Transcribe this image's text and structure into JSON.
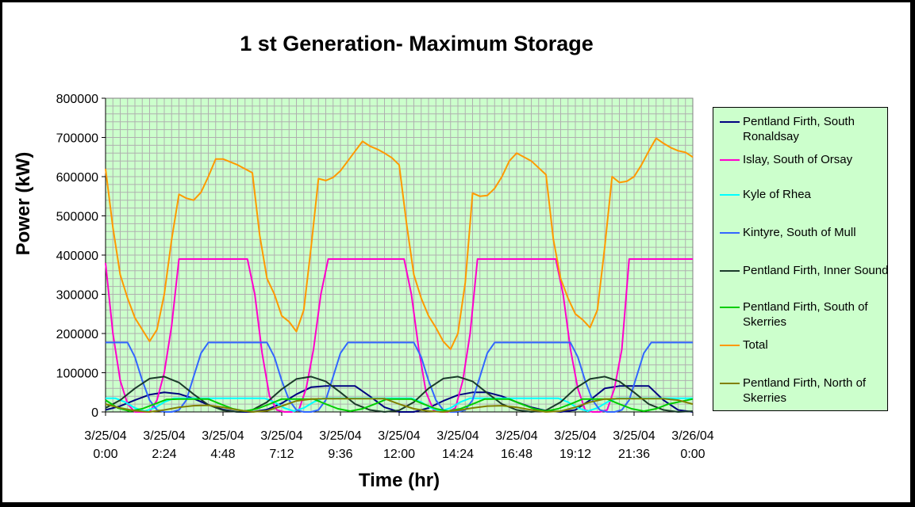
{
  "chart_data": {
    "type": "line",
    "title": "1 st Generation- Maximum Storage",
    "xlabel": "Time (hr)",
    "ylabel": "Power (kW)",
    "ylim": [
      0,
      800000
    ],
    "yticks": [
      "0",
      "100000",
      "200000",
      "300000",
      "400000",
      "500000",
      "600000",
      "700000",
      "800000"
    ],
    "xlim": [
      0,
      24
    ],
    "xticks": [
      {
        "line1": "3/25/04",
        "line2": "0:00"
      },
      {
        "line1": "3/25/04",
        "line2": "2:24"
      },
      {
        "line1": "3/25/04",
        "line2": "4:48"
      },
      {
        "line1": "3/25/04",
        "line2": "7:12"
      },
      {
        "line1": "3/25/04",
        "line2": "9:36"
      },
      {
        "line1": "3/25/04",
        "line2": "12:00"
      },
      {
        "line1": "3/25/04",
        "line2": "14:24"
      },
      {
        "line1": "3/25/04",
        "line2": "16:48"
      },
      {
        "line1": "3/25/04",
        "line2": "19:12"
      },
      {
        "line1": "3/25/04",
        "line2": "21:36"
      },
      {
        "line1": "3/26/04",
        "line2": "0:00"
      }
    ],
    "grid": true,
    "plot_background": "#ccffcc",
    "grid_color": "#b0b0b0",
    "legend_position": "right",
    "series": [
      {
        "name": "Pentland Firth, South Ronaldsay",
        "color": "#000080",
        "x": [
          0,
          0.6,
          1.2,
          1.8,
          2.4,
          3.0,
          3.6,
          4.2,
          4.8,
          5.4,
          6.0,
          6.6,
          7.2,
          7.8,
          8.4,
          9.0,
          9.6,
          10.2,
          10.8,
          11.4,
          12.0,
          12.6,
          13.2,
          13.8,
          14.4,
          15.0,
          15.6,
          16.2,
          16.8,
          17.4,
          18.0,
          18.6,
          19.2,
          19.8,
          20.4,
          21.0,
          21.6,
          22.2,
          22.8,
          23.4,
          24.0
        ],
        "values": [
          5000,
          15000,
          30000,
          44000,
          50000,
          46000,
          34000,
          18000,
          6000,
          0,
          0,
          6000,
          22000,
          45000,
          63000,
          66000,
          66000,
          66000,
          40000,
          12000,
          0,
          0,
          10000,
          28000,
          43000,
          50000,
          50000,
          40000,
          25000,
          12000,
          3000,
          0,
          5000,
          30000,
          60000,
          66000,
          66000,
          66000,
          30000,
          5000,
          0
        ]
      },
      {
        "name": "Islay, South of Orsay",
        "color": "#ff00cc",
        "x": [
          0,
          0.3,
          0.6,
          0.9,
          1.2,
          1.5,
          1.8,
          2.1,
          2.4,
          2.7,
          3.0,
          5.8,
          6.1,
          6.4,
          6.7,
          7.0,
          7.3,
          7.6,
          7.9,
          8.2,
          8.5,
          8.8,
          9.1,
          12.2,
          12.5,
          12.8,
          13.1,
          13.4,
          13.7,
          14.0,
          14.3,
          14.6,
          14.9,
          15.2,
          18.4,
          18.7,
          19.0,
          19.3,
          19.6,
          19.9,
          20.2,
          20.5,
          20.8,
          21.1,
          21.4,
          24.0
        ],
        "values": [
          380000,
          200000,
          80000,
          20000,
          0,
          0,
          0,
          30000,
          100000,
          220000,
          390000,
          390000,
          300000,
          150000,
          40000,
          5000,
          0,
          0,
          5000,
          60000,
          160000,
          300000,
          390000,
          390000,
          300000,
          160000,
          50000,
          5000,
          0,
          0,
          10000,
          80000,
          200000,
          390000,
          390000,
          300000,
          160000,
          60000,
          5000,
          0,
          0,
          5000,
          60000,
          160000,
          390000,
          390000
        ]
      },
      {
        "name": "Kyle of Rhea",
        "color": "#00ffff",
        "x": [
          0,
          0.4,
          0.8,
          1.2,
          1.6,
          2.0,
          2.4,
          2.8,
          3.2,
          6.5,
          6.9,
          7.3,
          7.7,
          8.1,
          8.5,
          8.9,
          9.3,
          12.5,
          12.9,
          13.3,
          13.7,
          14.1,
          14.5,
          14.9,
          15.3,
          18.5,
          18.9,
          19.3,
          19.7,
          20.1,
          20.5,
          20.9,
          21.3,
          24.0
        ],
        "values": [
          35000,
          35000,
          25000,
          10000,
          2000,
          10000,
          25000,
          35000,
          35000,
          35000,
          25000,
          10000,
          2000,
          10000,
          25000,
          35000,
          35000,
          35000,
          25000,
          10000,
          2000,
          10000,
          25000,
          35000,
          35000,
          35000,
          25000,
          10000,
          2000,
          10000,
          25000,
          35000,
          35000,
          35000
        ]
      },
      {
        "name": "Kintyre, South of Mull",
        "color": "#3366ff",
        "x": [
          0,
          0.9,
          1.2,
          1.5,
          1.8,
          2.1,
          2.4,
          2.7,
          3.0,
          3.3,
          3.6,
          3.9,
          4.2,
          4.5,
          6.6,
          6.9,
          7.2,
          7.5,
          7.8,
          8.1,
          8.4,
          8.7,
          9.0,
          9.3,
          9.6,
          9.9,
          10.2,
          10.5,
          12.6,
          12.9,
          13.2,
          13.5,
          13.8,
          14.1,
          14.4,
          14.7,
          15.0,
          15.3,
          15.6,
          15.9,
          16.2,
          16.5,
          19.0,
          19.3,
          19.6,
          19.9,
          20.2,
          20.5,
          20.8,
          21.1,
          21.4,
          21.7,
          22.0,
          22.3,
          22.6,
          24.0
        ],
        "values": [
          177000,
          177000,
          140000,
          80000,
          30000,
          5000,
          0,
          0,
          5000,
          30000,
          90000,
          150000,
          177000,
          177000,
          177000,
          140000,
          80000,
          30000,
          5000,
          0,
          0,
          5000,
          30000,
          90000,
          150000,
          177000,
          177000,
          177000,
          177000,
          140000,
          80000,
          30000,
          5000,
          0,
          0,
          5000,
          30000,
          90000,
          150000,
          177000,
          177000,
          177000,
          177000,
          140000,
          80000,
          30000,
          5000,
          0,
          0,
          5000,
          30000,
          90000,
          150000,
          177000,
          177000,
          177000
        ]
      },
      {
        "name": "Pentland Firth, Inner Sound",
        "color": "#1a3a2a",
        "x": [
          0,
          0.6,
          1.2,
          1.8,
          2.4,
          3.0,
          3.6,
          4.2,
          4.8,
          5.4,
          6.0,
          6.6,
          7.2,
          7.8,
          8.4,
          9.0,
          9.6,
          10.2,
          10.8,
          11.4,
          12.0,
          12.6,
          13.2,
          13.8,
          14.4,
          15.0,
          15.6,
          16.2,
          16.8,
          17.4,
          18.0,
          18.6,
          19.2,
          19.8,
          20.4,
          21.0,
          21.6,
          22.2,
          22.8,
          23.4,
          24.0
        ],
        "values": [
          10000,
          30000,
          60000,
          85000,
          90000,
          75000,
          45000,
          18000,
          4000,
          0,
          5000,
          25000,
          58000,
          84000,
          90000,
          78000,
          50000,
          20000,
          5000,
          0,
          4000,
          25000,
          60000,
          85000,
          90000,
          78000,
          48000,
          20000,
          5000,
          0,
          4000,
          25000,
          60000,
          84000,
          90000,
          78000,
          50000,
          20000,
          5000,
          0,
          2000
        ]
      },
      {
        "name": "Pentland Firth, South of Skerries",
        "color": "#00cc00",
        "x": [
          0,
          0.5,
          1.0,
          1.5,
          2.0,
          2.5,
          3.0,
          4.2,
          4.7,
          5.2,
          5.7,
          6.2,
          6.7,
          7.2,
          8.5,
          9.0,
          9.5,
          10.0,
          10.5,
          11.0,
          11.5,
          12.5,
          13.0,
          13.5,
          14.0,
          14.5,
          15.0,
          15.5,
          16.5,
          17.0,
          17.5,
          18.0,
          18.5,
          19.0,
          19.5,
          20.5,
          21.0,
          21.5,
          22.0,
          22.5,
          23.0,
          24.0
        ],
        "values": [
          30000,
          10000,
          2000,
          8000,
          20000,
          32000,
          33000,
          33000,
          20000,
          8000,
          2000,
          8000,
          20000,
          33000,
          33000,
          20000,
          8000,
          2000,
          8000,
          20000,
          33000,
          33000,
          20000,
          8000,
          2000,
          8000,
          20000,
          33000,
          33000,
          20000,
          8000,
          2000,
          8000,
          20000,
          33000,
          33000,
          20000,
          8000,
          2000,
          8000,
          20000,
          33000
        ]
      },
      {
        "name": "Total",
        "color": "#ff9900",
        "x": [
          0,
          0.3,
          0.6,
          0.9,
          1.2,
          1.5,
          1.8,
          2.1,
          2.4,
          2.7,
          3.0,
          3.3,
          3.6,
          3.9,
          4.2,
          4.5,
          4.8,
          5.4,
          6.0,
          6.3,
          6.6,
          6.9,
          7.2,
          7.5,
          7.8,
          8.1,
          8.4,
          8.7,
          9.0,
          9.3,
          9.6,
          9.9,
          10.2,
          10.5,
          10.8,
          11.1,
          11.4,
          11.7,
          12.0,
          12.3,
          12.6,
          12.9,
          13.2,
          13.5,
          13.8,
          14.1,
          14.4,
          14.7,
          15.0,
          15.3,
          15.6,
          15.9,
          16.2,
          16.5,
          16.8,
          17.4,
          18.0,
          18.3,
          18.6,
          18.9,
          19.2,
          19.5,
          19.8,
          20.1,
          20.4,
          20.7,
          21.0,
          21.3,
          21.6,
          21.9,
          22.2,
          22.5,
          22.8,
          23.1,
          23.4,
          23.7,
          24.0
        ],
        "values": [
          620000,
          470000,
          350000,
          290000,
          240000,
          210000,
          180000,
          210000,
          300000,
          440000,
          555000,
          545000,
          540000,
          560000,
          600000,
          645000,
          645000,
          630000,
          610000,
          450000,
          340000,
          300000,
          245000,
          230000,
          205000,
          260000,
          420000,
          595000,
          590000,
          598000,
          615000,
          640000,
          665000,
          690000,
          678000,
          670000,
          660000,
          648000,
          630000,
          480000,
          350000,
          290000,
          245000,
          215000,
          180000,
          160000,
          200000,
          330000,
          558000,
          550000,
          552000,
          570000,
          600000,
          640000,
          660000,
          640000,
          605000,
          440000,
          340000,
          290000,
          250000,
          235000,
          215000,
          260000,
          420000,
          600000,
          585000,
          588000,
          600000,
          630000,
          665000,
          698000,
          685000,
          674000,
          666000,
          662000,
          650000
        ]
      },
      {
        "name": "Pentland Firth, North of Skerries",
        "color": "#808000",
        "x": [
          0,
          0.6,
          1.2,
          1.8,
          2.4,
          3.0,
          3.6,
          4.2,
          4.8,
          5.4,
          6.0,
          6.6,
          7.2,
          7.8,
          8.4,
          9.0,
          9.6,
          10.2,
          10.8,
          11.4,
          12.0,
          12.6,
          13.2,
          13.8,
          14.4,
          15.0,
          15.6,
          16.2,
          16.8,
          17.4,
          18.0,
          18.6,
          19.2,
          19.8,
          20.4,
          21.0,
          21.6,
          22.2,
          22.8,
          23.4,
          24.0
        ],
        "values": [
          20000,
          10000,
          3000,
          0,
          5000,
          12000,
          16000,
          17000,
          12000,
          5000,
          0,
          3000,
          15000,
          28000,
          33000,
          34000,
          34000,
          34000,
          34000,
          34000,
          20000,
          8000,
          2000,
          0,
          4000,
          10000,
          15000,
          16000,
          12000,
          5000,
          0,
          2000,
          12000,
          25000,
          33000,
          34000,
          34000,
          34000,
          34000,
          30000,
          20000
        ]
      }
    ]
  }
}
